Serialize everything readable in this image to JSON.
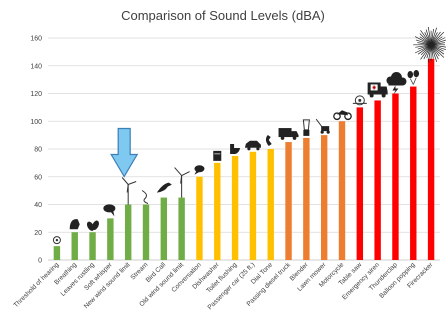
{
  "chart_data": {
    "type": "bar",
    "title": "Comparison of Sound Levels (dBA)",
    "xlabel": "",
    "ylabel": "",
    "ylim": [
      0,
      160
    ],
    "yticks": [
      0,
      20,
      40,
      60,
      80,
      100,
      120,
      140,
      160
    ],
    "grid": true,
    "legend": "none",
    "categories": [
      "Threshold of hearing",
      "Breathing",
      "Leaves rustling",
      "Soft whisper",
      "New wind sound limit",
      "Stream",
      "Bird Call",
      "Old wind sound limit",
      "Conversation",
      "Dishwasher",
      "Toilet flushing",
      "Passenger car (25 ft.)",
      "Dial Tone",
      "Passing diesel truck",
      "Blender",
      "Lawn mower",
      "Motorcycle",
      "Table saw",
      "Emergency siren",
      "Thunderclap",
      "Balloon popping",
      "Firecracker"
    ],
    "values": [
      10,
      20,
      20,
      30,
      40,
      40,
      45,
      45,
      60,
      70,
      75,
      78,
      80,
      85,
      88,
      90,
      100,
      110,
      115,
      120,
      125,
      145
    ],
    "bar_colors": [
      "#70ad47",
      "#70ad47",
      "#70ad47",
      "#70ad47",
      "#70ad47",
      "#70ad47",
      "#70ad47",
      "#70ad47",
      "#ffc000",
      "#ffc000",
      "#ffc000",
      "#ffc000",
      "#ffc000",
      "#ed7d31",
      "#ed7d31",
      "#ed7d31",
      "#ed7d31",
      "#ff0000",
      "#ff0000",
      "#ff0000",
      "#ff0000",
      "#ff0000"
    ],
    "highlight": {
      "category": "New wind sound limit",
      "arrow_color": "#7fc8f0"
    }
  }
}
